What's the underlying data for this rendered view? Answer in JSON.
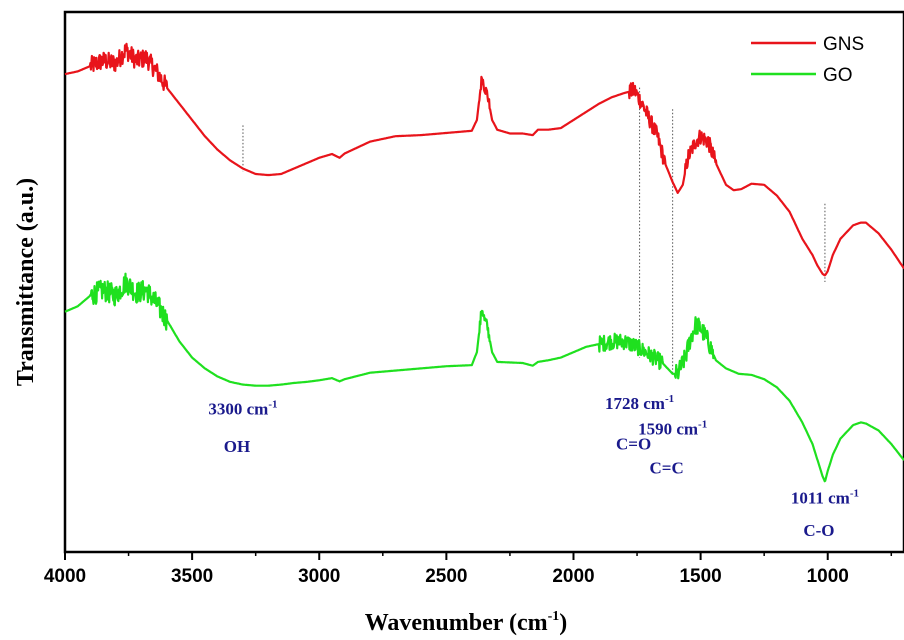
{
  "chart_data": {
    "type": "line",
    "xlabel": "Wavenumber (cm",
    "xlabel_sup": "-1",
    "xlabel_end": ")",
    "ylabel": "Transmittance (a.u.)",
    "xlim": [
      4000,
      700
    ],
    "x_reversed": true,
    "x_ticks": [
      4000,
      3500,
      3000,
      2500,
      2000,
      1500,
      1000
    ],
    "ylim": [
      0,
      1
    ],
    "y_ticks_visible": false,
    "grid": false,
    "legend_position": "top-right",
    "series": [
      {
        "name": "GNS",
        "color": "#e8141b",
        "noise_regions": [
          [
            3900,
            3600,
            0.035
          ],
          [
            2370,
            2330,
            0.02
          ],
          [
            1780,
            1640,
            0.03
          ],
          [
            1560,
            1440,
            0.03
          ]
        ],
        "points": [
          [
            4000,
            0.885
          ],
          [
            3950,
            0.89
          ],
          [
            3900,
            0.9
          ],
          [
            3850,
            0.91
          ],
          [
            3800,
            0.905
          ],
          [
            3760,
            0.93
          ],
          [
            3720,
            0.91
          ],
          [
            3680,
            0.915
          ],
          [
            3640,
            0.89
          ],
          [
            3600,
            0.86
          ],
          [
            3550,
            0.83
          ],
          [
            3500,
            0.8
          ],
          [
            3450,
            0.77
          ],
          [
            3400,
            0.745
          ],
          [
            3350,
            0.725
          ],
          [
            3300,
            0.71
          ],
          [
            3250,
            0.7
          ],
          [
            3200,
            0.698
          ],
          [
            3150,
            0.7
          ],
          [
            3100,
            0.71
          ],
          [
            3050,
            0.72
          ],
          [
            3000,
            0.73
          ],
          [
            2950,
            0.737
          ],
          [
            2920,
            0.73
          ],
          [
            2900,
            0.738
          ],
          [
            2800,
            0.76
          ],
          [
            2700,
            0.77
          ],
          [
            2600,
            0.772
          ],
          [
            2500,
            0.776
          ],
          [
            2400,
            0.78
          ],
          [
            2380,
            0.8
          ],
          [
            2360,
            0.88
          ],
          [
            2350,
            0.86
          ],
          [
            2340,
            0.85
          ],
          [
            2320,
            0.8
          ],
          [
            2300,
            0.782
          ],
          [
            2250,
            0.775
          ],
          [
            2200,
            0.775
          ],
          [
            2160,
            0.772
          ],
          [
            2140,
            0.782
          ],
          [
            2100,
            0.782
          ],
          [
            2050,
            0.785
          ],
          [
            2000,
            0.8
          ],
          [
            1950,
            0.815
          ],
          [
            1900,
            0.83
          ],
          [
            1850,
            0.842
          ],
          [
            1800,
            0.85
          ],
          [
            1760,
            0.855
          ],
          [
            1730,
            0.83
          ],
          [
            1700,
            0.8
          ],
          [
            1670,
            0.77
          ],
          [
            1640,
            0.72
          ],
          [
            1610,
            0.685
          ],
          [
            1590,
            0.665
          ],
          [
            1570,
            0.68
          ],
          [
            1550,
            0.73
          ],
          [
            1520,
            0.76
          ],
          [
            1500,
            0.77
          ],
          [
            1470,
            0.76
          ],
          [
            1440,
            0.72
          ],
          [
            1400,
            0.68
          ],
          [
            1370,
            0.67
          ],
          [
            1340,
            0.672
          ],
          [
            1300,
            0.682
          ],
          [
            1250,
            0.68
          ],
          [
            1200,
            0.66
          ],
          [
            1150,
            0.63
          ],
          [
            1100,
            0.58
          ],
          [
            1060,
            0.55
          ],
          [
            1040,
            0.53
          ],
          [
            1020,
            0.515
          ],
          [
            1011,
            0.512
          ],
          [
            1000,
            0.52
          ],
          [
            980,
            0.55
          ],
          [
            950,
            0.58
          ],
          [
            900,
            0.605
          ],
          [
            870,
            0.61
          ],
          [
            850,
            0.61
          ],
          [
            800,
            0.59
          ],
          [
            750,
            0.56
          ],
          [
            700,
            0.525
          ]
        ]
      },
      {
        "name": "GO",
        "color": "#1fe01f",
        "noise_regions": [
          [
            3900,
            3600,
            0.04
          ],
          [
            2370,
            2330,
            0.02
          ],
          [
            1900,
            1650,
            0.03
          ],
          [
            1600,
            1450,
            0.035
          ]
        ],
        "points": [
          [
            4000,
            0.445
          ],
          [
            3950,
            0.455
          ],
          [
            3900,
            0.475
          ],
          [
            3850,
            0.485
          ],
          [
            3800,
            0.475
          ],
          [
            3760,
            0.5
          ],
          [
            3720,
            0.48
          ],
          [
            3680,
            0.485
          ],
          [
            3640,
            0.46
          ],
          [
            3600,
            0.43
          ],
          [
            3550,
            0.39
          ],
          [
            3500,
            0.36
          ],
          [
            3450,
            0.34
          ],
          [
            3400,
            0.325
          ],
          [
            3350,
            0.315
          ],
          [
            3300,
            0.31
          ],
          [
            3250,
            0.308
          ],
          [
            3200,
            0.308
          ],
          [
            3150,
            0.31
          ],
          [
            3100,
            0.313
          ],
          [
            3050,
            0.315
          ],
          [
            3000,
            0.318
          ],
          [
            2950,
            0.322
          ],
          [
            2920,
            0.316
          ],
          [
            2900,
            0.32
          ],
          [
            2800,
            0.332
          ],
          [
            2700,
            0.336
          ],
          [
            2600,
            0.34
          ],
          [
            2500,
            0.344
          ],
          [
            2400,
            0.346
          ],
          [
            2380,
            0.37
          ],
          [
            2360,
            0.452
          ],
          [
            2350,
            0.43
          ],
          [
            2340,
            0.42
          ],
          [
            2320,
            0.37
          ],
          [
            2300,
            0.352
          ],
          [
            2200,
            0.35
          ],
          [
            2160,
            0.345
          ],
          [
            2140,
            0.352
          ],
          [
            2100,
            0.355
          ],
          [
            2050,
            0.36
          ],
          [
            2000,
            0.37
          ],
          [
            1950,
            0.38
          ],
          [
            1900,
            0.385
          ],
          [
            1850,
            0.39
          ],
          [
            1800,
            0.39
          ],
          [
            1750,
            0.38
          ],
          [
            1700,
            0.365
          ],
          [
            1650,
            0.35
          ],
          [
            1610,
            0.33
          ],
          [
            1590,
            0.33
          ],
          [
            1560,
            0.36
          ],
          [
            1540,
            0.395
          ],
          [
            1520,
            0.42
          ],
          [
            1500,
            0.415
          ],
          [
            1470,
            0.39
          ],
          [
            1440,
            0.355
          ],
          [
            1400,
            0.34
          ],
          [
            1350,
            0.33
          ],
          [
            1300,
            0.328
          ],
          [
            1250,
            0.32
          ],
          [
            1200,
            0.305
          ],
          [
            1150,
            0.28
          ],
          [
            1100,
            0.24
          ],
          [
            1060,
            0.2
          ],
          [
            1040,
            0.17
          ],
          [
            1020,
            0.14
          ],
          [
            1011,
            0.13
          ],
          [
            1000,
            0.15
          ],
          [
            980,
            0.18
          ],
          [
            950,
            0.21
          ],
          [
            900,
            0.235
          ],
          [
            870,
            0.24
          ],
          [
            850,
            0.238
          ],
          [
            800,
            0.225
          ],
          [
            750,
            0.2
          ],
          [
            700,
            0.17
          ]
        ]
      }
    ],
    "annotations": [
      {
        "x": 3300,
        "line_top": 0.79,
        "line_bottom": 0.705,
        "text": "3300 cm",
        "sup": "-1",
        "group": "OH",
        "text_y": 0.255,
        "group_y": 0.185
      },
      {
        "x": 1740,
        "line_top": 0.86,
        "line_bottom": 0.36,
        "text": "1728 cm",
        "sup": "-1",
        "group": "C=O",
        "text_y": 0.265,
        "group_y": 0.19
      },
      {
        "x": 1610,
        "line_top": 0.82,
        "line_bottom": 0.33,
        "text": "1590 cm",
        "sup": "-1",
        "group": "C=C",
        "text_y": 0.218,
        "group_y": 0.145
      },
      {
        "x": 1011,
        "line_top": 0.645,
        "line_bottom": 0.5,
        "text": "1011 cm",
        "sup": "-1",
        "group": "C-O",
        "text_y": 0.09,
        "group_y": 0.03
      }
    ]
  }
}
